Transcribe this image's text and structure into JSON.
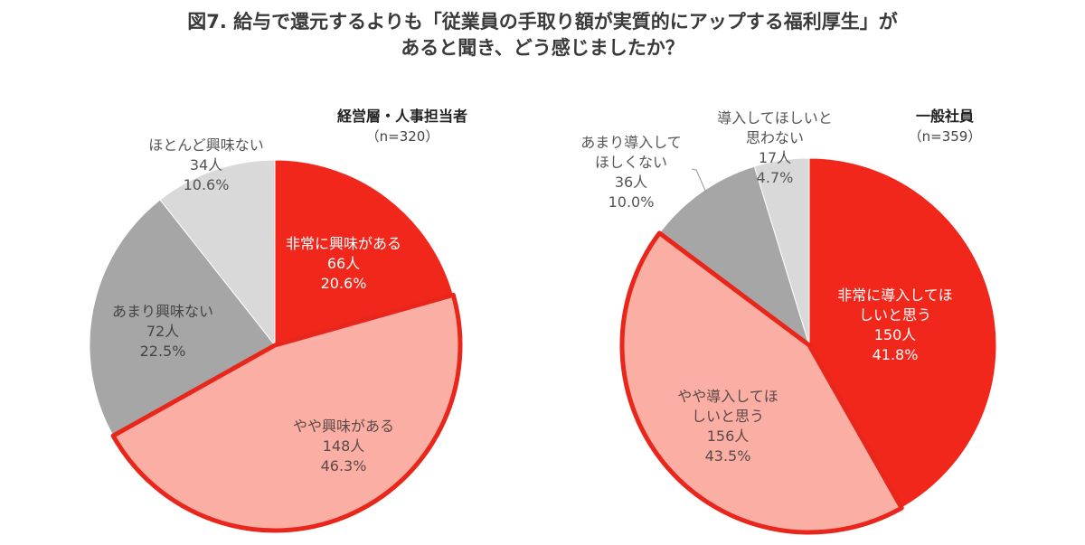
{
  "title": {
    "line1": "図7. 給与で還元するよりも「従業員の手取り額が実質的にアップする福利厚生」が",
    "line2": "あると聞き、どう感じましたか？"
  },
  "colors": {
    "red": "#f1271b",
    "pink": "#fbaea4",
    "gray": "#a6a6a6",
    "lightgray": "#d9d9d9",
    "highlight_border": "#e8261b"
  },
  "chart_data": [
    {
      "type": "pie",
      "group": "経営層・人事担当者",
      "n_label": "（n=320）",
      "n": 320,
      "start": "12 o'clock, clockwise",
      "slices": [
        {
          "label": "非常に興味がある",
          "count": 66,
          "count_label": "66人",
          "percent": 20.6,
          "percent_label": "20.6%",
          "color": "red",
          "text_color": "#ffffff"
        },
        {
          "label": "やや興味がある",
          "count": 148,
          "count_label": "148人",
          "percent": 46.3,
          "percent_label": "46.3%",
          "color": "pink",
          "text_color": "#5a4a48",
          "highlighted": true
        },
        {
          "label": "あまり興味ない",
          "count": 72,
          "count_label": "72人",
          "percent": 22.5,
          "percent_label": "22.5%",
          "color": "gray",
          "text_color": "#444444"
        },
        {
          "label": "ほとんど興味ない",
          "count": 34,
          "count_label": "34人",
          "percent": 10.6,
          "percent_label": "10.6%",
          "color": "lightgray",
          "text_color": "#555555"
        }
      ]
    },
    {
      "type": "pie",
      "group": "一般社員",
      "n_label": "（n=359）",
      "n": 359,
      "start": "12 o'clock, clockwise",
      "slices": [
        {
          "label": "非常に導入してほしいと思う",
          "label_lines": [
            "非常に導入してほ",
            "しいと思う"
          ],
          "count": 150,
          "count_label": "150人",
          "percent": 41.8,
          "percent_label": "41.8%",
          "color": "red",
          "text_color": "#ffffff"
        },
        {
          "label": "やや導入してほしいと思う",
          "label_lines": [
            "やや導入してほ",
            "しいと思う"
          ],
          "count": 156,
          "count_label": "156人",
          "percent": 43.5,
          "percent_label": "43.5%",
          "color": "pink",
          "text_color": "#5a4a48",
          "highlighted": true
        },
        {
          "label": "あまり導入してほしくない",
          "label_lines": [
            "あまり導入して",
            "ほしくない"
          ],
          "count": 36,
          "count_label": "36人",
          "percent": 10.0,
          "percent_label": "10.0%",
          "color": "gray",
          "text_color": "#555555"
        },
        {
          "label": "導入してほしいと思わない",
          "label_lines": [
            "導入してほしいと",
            "思わない"
          ],
          "count": 17,
          "count_label": "17人",
          "percent": 4.7,
          "percent_label": "4.7%",
          "color": "lightgray",
          "text_color": "#555555"
        }
      ]
    }
  ]
}
